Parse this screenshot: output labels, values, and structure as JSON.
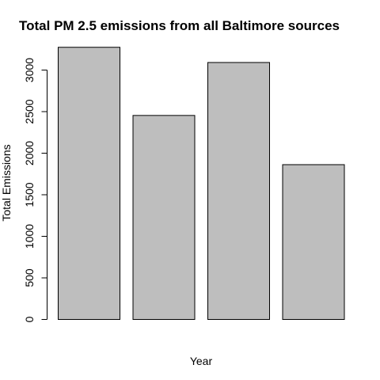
{
  "chart_data": {
    "type": "bar",
    "title": "Total PM 2.5 emissions from all Baltimore sources",
    "xlabel": "Year",
    "ylabel": "Total Emissions",
    "categories": [
      "",
      "",
      "",
      ""
    ],
    "values": [
      3274,
      2454,
      3091,
      1862
    ],
    "ylim": [
      0,
      3300
    ],
    "yticks": [
      0,
      500,
      1000,
      1500,
      2000,
      2500,
      3000
    ],
    "bar_color": "#bebebe",
    "grid": false,
    "legend": "none"
  }
}
